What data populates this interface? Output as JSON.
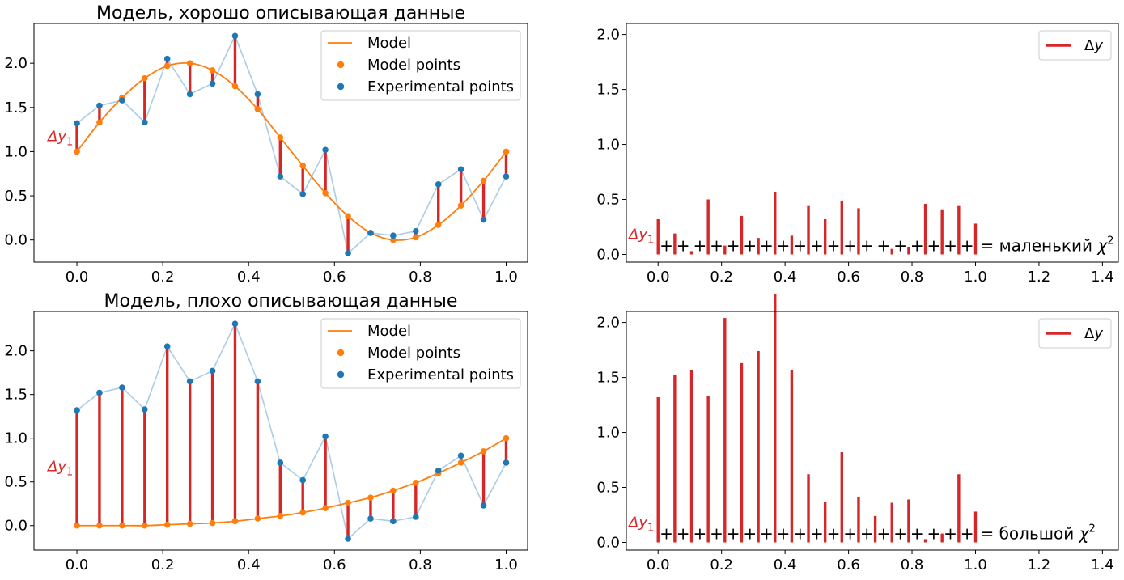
{
  "colors": {
    "model": "#ff7f0e",
    "experimental": "#1f77b4",
    "residual": "#d62728",
    "exp_line": "#aacde6"
  },
  "chart_data": [
    {
      "type": "line",
      "title": "Модель, хорошо описывающая данные",
      "xlim": [
        -0.1,
        1.05
      ],
      "ylim": [
        -0.25,
        2.45
      ],
      "xticks": [
        "0.0",
        "0.2",
        "0.4",
        "0.6",
        "0.8",
        "1.0"
      ],
      "yticks": [
        "0.0",
        "0.5",
        "1.0",
        "1.5",
        "2.0"
      ],
      "annotation": "Δy₁",
      "legend": {
        "position": "top-right",
        "entries": [
          "Model",
          "Model points",
          "Experimental points"
        ]
      },
      "x": [
        0.0,
        0.0526,
        0.1053,
        0.1579,
        0.2105,
        0.2632,
        0.3158,
        0.3684,
        0.4211,
        0.4737,
        0.5263,
        0.5789,
        0.6316,
        0.6842,
        0.7368,
        0.7895,
        0.8421,
        0.8947,
        0.9474,
        1.0
      ],
      "series": [
        {
          "name": "Model points",
          "values": [
            1.0,
            1.33,
            1.61,
            1.83,
            1.97,
            2.0,
            1.92,
            1.74,
            1.48,
            1.16,
            0.84,
            0.53,
            0.27,
            0.08,
            0.0,
            0.03,
            0.17,
            0.39,
            0.67,
            1.0
          ]
        },
        {
          "name": "Experimental points",
          "values": [
            1.32,
            1.52,
            1.58,
            1.33,
            2.05,
            1.65,
            1.77,
            2.31,
            1.65,
            0.72,
            0.52,
            1.02,
            -0.15,
            0.08,
            0.05,
            0.1,
            0.63,
            0.8,
            0.23,
            0.72
          ]
        }
      ]
    },
    {
      "type": "bar",
      "xlim": [
        -0.1,
        1.45
      ],
      "ylim": [
        -0.07,
        2.1
      ],
      "xticks": [
        "0.0",
        "0.2",
        "0.4",
        "0.6",
        "0.8",
        "1.0",
        "1.2",
        "1.4"
      ],
      "yticks": [
        "0.0",
        "0.5",
        "1.0",
        "1.5",
        "2.0"
      ],
      "annotation": "Δy₁",
      "legend": {
        "position": "top-right",
        "entries": [
          "Δy"
        ]
      },
      "sum_label": "= маленький χ²",
      "x": [
        0.0,
        0.0526,
        0.1053,
        0.1579,
        0.2105,
        0.2632,
        0.3158,
        0.3684,
        0.4211,
        0.4737,
        0.5263,
        0.5789,
        0.6316,
        0.6842,
        0.7368,
        0.7895,
        0.8421,
        0.8947,
        0.9474,
        1.0
      ],
      "values": [
        0.32,
        0.19,
        0.03,
        0.5,
        0.08,
        0.35,
        0.15,
        0.57,
        0.17,
        0.44,
        0.32,
        0.49,
        0.42,
        0.0,
        0.05,
        0.07,
        0.46,
        0.41,
        0.44,
        0.28
      ]
    },
    {
      "type": "line",
      "title": "Модель, плохо описывающая данные",
      "xlim": [
        -0.1,
        1.05
      ],
      "ylim": [
        -0.28,
        2.45
      ],
      "xticks": [
        "0.0",
        "0.2",
        "0.4",
        "0.6",
        "0.8",
        "1.0"
      ],
      "yticks": [
        "0.0",
        "0.5",
        "1.0",
        "1.5",
        "2.0"
      ],
      "annotation": "Δy₁",
      "legend": {
        "position": "top-right",
        "entries": [
          "Model",
          "Model points",
          "Experimental points"
        ]
      },
      "x": [
        0.0,
        0.0526,
        0.1053,
        0.1579,
        0.2105,
        0.2632,
        0.3158,
        0.3684,
        0.4211,
        0.4737,
        0.5263,
        0.5789,
        0.6316,
        0.6842,
        0.7368,
        0.7895,
        0.8421,
        0.8947,
        0.9474,
        1.0
      ],
      "series": [
        {
          "name": "Model points",
          "values": [
            0.0,
            0.0,
            0.0,
            0.0,
            0.01,
            0.02,
            0.03,
            0.05,
            0.08,
            0.11,
            0.15,
            0.2,
            0.26,
            0.32,
            0.4,
            0.49,
            0.6,
            0.72,
            0.85,
            1.0
          ]
        },
        {
          "name": "Experimental points",
          "values": [
            1.32,
            1.52,
            1.58,
            1.33,
            2.05,
            1.65,
            1.77,
            2.31,
            1.65,
            0.72,
            0.52,
            1.02,
            -0.15,
            0.08,
            0.05,
            0.1,
            0.63,
            0.8,
            0.23,
            0.72
          ]
        }
      ]
    },
    {
      "type": "bar",
      "xlim": [
        -0.1,
        1.45
      ],
      "ylim": [
        -0.07,
        2.1
      ],
      "xticks": [
        "0.0",
        "0.2",
        "0.4",
        "0.6",
        "0.8",
        "1.0",
        "1.2",
        "1.4"
      ],
      "yticks": [
        "0.0",
        "0.5",
        "1.0",
        "1.5",
        "2.0"
      ],
      "annotation": "Δy₁",
      "legend": {
        "position": "top-right",
        "entries": [
          "Δy"
        ]
      },
      "sum_label": "= большой χ²",
      "x": [
        0.0,
        0.0526,
        0.1053,
        0.1579,
        0.2105,
        0.2632,
        0.3158,
        0.3684,
        0.4211,
        0.4737,
        0.5263,
        0.5789,
        0.6316,
        0.6842,
        0.7368,
        0.7895,
        0.8421,
        0.8947,
        0.9474,
        1.0
      ],
      "values": [
        1.32,
        1.52,
        1.57,
        1.33,
        2.04,
        1.63,
        1.74,
        2.26,
        1.57,
        0.62,
        0.37,
        0.82,
        0.41,
        0.24,
        0.36,
        0.39,
        0.03,
        0.08,
        0.62,
        0.28
      ]
    }
  ]
}
